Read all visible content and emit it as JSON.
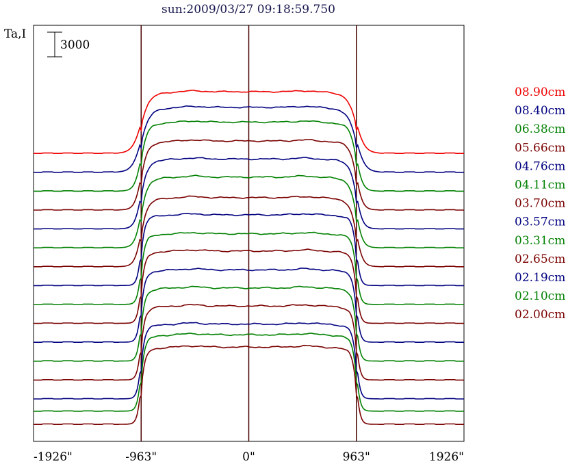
{
  "title": "sun:2009/03/27 09:18:59.750",
  "colors": {
    "red": "#ee0000",
    "blue": "#000080",
    "green": "#008000",
    "maroon": "#7a0000"
  },
  "chart_data": {
    "type": "line",
    "title": "sun:2009/03/27 09:18:59.750",
    "ylabel": "Ta,I",
    "scale_bar": {
      "label": "3000",
      "value": 3000
    },
    "x_ticks": [
      {
        "value": -1926,
        "label": "-1926\""
      },
      {
        "value": -963,
        "label": "-963\""
      },
      {
        "value": 0,
        "label": "0\""
      },
      {
        "value": 963,
        "label": "963\""
      },
      {
        "value": 1926,
        "label": "1926\""
      }
    ],
    "xlim": [
      -1926,
      1926
    ],
    "vertical_lines": [
      -963,
      0,
      963
    ],
    "series": [
      {
        "name": "08.90cm",
        "color": "#ee0000",
        "baseline": 33000,
        "disk": 7500,
        "limb": "sharp"
      },
      {
        "name": "08.40cm",
        "color": "#000080",
        "baseline": 30700,
        "disk": 7900,
        "limb": "sharp"
      },
      {
        "name": "06.38cm",
        "color": "#008000",
        "baseline": 28400,
        "disk": 8400,
        "limb": "medium"
      },
      {
        "name": "05.66cm",
        "color": "#7a0000",
        "baseline": 26100,
        "disk": 8400,
        "limb": "medium"
      },
      {
        "name": "04.76cm",
        "color": "#000080",
        "baseline": 23800,
        "disk": 8500,
        "limb": "medium"
      },
      {
        "name": "04.11cm",
        "color": "#008000",
        "baseline": 21500,
        "disk": 8600,
        "limb": "medium"
      },
      {
        "name": "03.70cm",
        "color": "#7a0000",
        "baseline": 19200,
        "disk": 8400,
        "limb": "medium"
      },
      {
        "name": "03.57cm",
        "color": "#000080",
        "baseline": 16900,
        "disk": 8600,
        "limb": "smooth"
      },
      {
        "name": "03.31cm",
        "color": "#008000",
        "baseline": 14600,
        "disk": 8600,
        "limb": "smooth"
      },
      {
        "name": "02.65cm",
        "color": "#7a0000",
        "baseline": 12300,
        "disk": 8800,
        "limb": "smooth"
      },
      {
        "name": "02.19cm",
        "color": "#000080",
        "baseline": 10000,
        "disk": 8800,
        "limb": "smooth"
      },
      {
        "name": "02.10cm",
        "color": "#008000",
        "baseline": 7700,
        "disk": 8900,
        "limb": "smooth"
      },
      {
        "name": "02.00cm",
        "color": "#7a0000",
        "baseline": 5400,
        "disk": 9000,
        "limb": "smooth"
      },
      {
        "name": "",
        "color": "#000080",
        "baseline": 3100,
        "disk": 9100,
        "limb": "smooth"
      },
      {
        "name": "",
        "color": "#008000",
        "baseline": 1600,
        "disk": 9300,
        "limb": "smooth"
      },
      {
        "name": "",
        "color": "#7a0000",
        "baseline": 0,
        "disk": 9400,
        "limb": "smooth"
      }
    ]
  }
}
